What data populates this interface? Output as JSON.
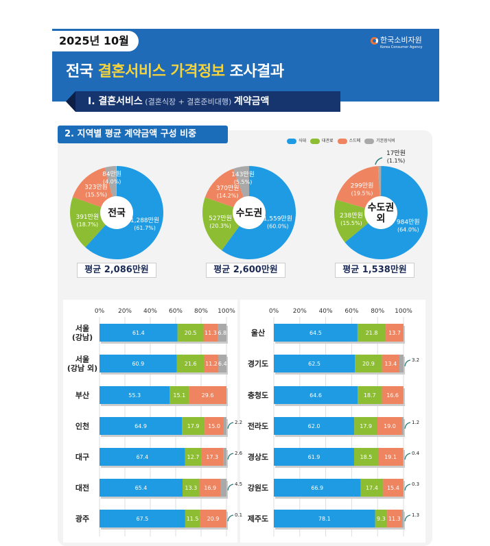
{
  "header": {
    "date": "2025년 10월",
    "logo_name": "한국소비자원",
    "logo_sub": "Korea Consumer Agency",
    "title_pre": "전국 ",
    "title_hl": "결혼서비스 가격정보",
    "title_post": " 조사결과"
  },
  "subtitle": {
    "bold1": "Ⅰ. 결혼서비스",
    "light": " (결혼식장 + 결혼준비대행) ",
    "bold2": "계약금액"
  },
  "section": {
    "title": "2. 지역별 평균 계약금액 구성 비중"
  },
  "legend": [
    {
      "label": "식대",
      "color": "#1e9be3"
    },
    {
      "label": "대관료",
      "color": "#8cbd32"
    },
    {
      "label": "스드메",
      "color": "#ee8460"
    },
    {
      "label": "기본장식비",
      "color": "#a9a9a9"
    }
  ],
  "chart_data": [
    {
      "type": "pie",
      "title": "전국",
      "average": "평균 2,086만원",
      "slices": [
        {
          "category": "식대",
          "amount": "1,288만원",
          "pct": 61.7
        },
        {
          "category": "대관료",
          "amount": "391만원",
          "pct": 18.7
        },
        {
          "category": "스드메",
          "amount": "323만원",
          "pct": 15.5
        },
        {
          "category": "기본장식비",
          "amount": "84만원",
          "pct": 4.0
        }
      ]
    },
    {
      "type": "pie",
      "title": "수도권",
      "average": "평균 2,600만원",
      "slices": [
        {
          "category": "식대",
          "amount": "1,559만원",
          "pct": 60.0
        },
        {
          "category": "대관료",
          "amount": "527만원",
          "pct": 20.3
        },
        {
          "category": "스드메",
          "amount": "370만원",
          "pct": 14.2
        },
        {
          "category": "기본장식비",
          "amount": "143만원",
          "pct": 5.5
        }
      ]
    },
    {
      "type": "pie",
      "title": "수도권 외",
      "average": "평균 1,538만원",
      "slices": [
        {
          "category": "식대",
          "amount": "984만원",
          "pct": 64.0
        },
        {
          "category": "대관료",
          "amount": "238만원",
          "pct": 15.5
        },
        {
          "category": "스드메",
          "amount": "299만원",
          "pct": 19.5
        },
        {
          "category": "기본장식비",
          "amount": "17만원",
          "pct": 1.1
        }
      ]
    },
    {
      "type": "bar",
      "stacked": true,
      "orientation": "horizontal",
      "xticks": [
        "0%",
        "20%",
        "40%",
        "60%",
        "80%",
        "100%"
      ],
      "xlim": [
        0,
        100
      ],
      "categories": [
        "서울\n(강남)",
        "서울\n(강남 외)",
        "부산",
        "인천",
        "대구",
        "대전",
        "광주"
      ],
      "series": [
        {
          "name": "식대",
          "values": [
            61.4,
            60.9,
            55.3,
            64.9,
            67.4,
            65.4,
            67.5
          ]
        },
        {
          "name": "대관료",
          "values": [
            20.5,
            21.6,
            15.1,
            17.9,
            12.7,
            13.3,
            11.5
          ]
        },
        {
          "name": "스드메",
          "values": [
            11.3,
            11.2,
            29.6,
            15.0,
            17.3,
            16.9,
            20.9
          ]
        },
        {
          "name": "기본장식비",
          "values": [
            6.8,
            6.4,
            0,
            2.2,
            2.6,
            4.5,
            0.1
          ]
        }
      ]
    },
    {
      "type": "bar",
      "stacked": true,
      "orientation": "horizontal",
      "xticks": [
        "0%",
        "20%",
        "40%",
        "60%",
        "80%",
        "100%"
      ],
      "xlim": [
        0,
        100
      ],
      "categories": [
        "울산",
        "경기도",
        "충청도",
        "전라도",
        "경상도",
        "강원도",
        "제주도"
      ],
      "series": [
        {
          "name": "식대",
          "values": [
            64.5,
            62.5,
            64.6,
            62.0,
            61.9,
            66.9,
            78.1
          ]
        },
        {
          "name": "대관료",
          "values": [
            21.8,
            20.9,
            18.7,
            17.9,
            18.5,
            17.4,
            9.3
          ]
        },
        {
          "name": "스드메",
          "values": [
            13.7,
            13.4,
            16.6,
            19.0,
            19.1,
            15.4,
            11.3
          ]
        },
        {
          "name": "기본장식비",
          "values": [
            0,
            3.2,
            0,
            1.2,
            0.4,
            0.3,
            1.3
          ]
        }
      ]
    }
  ]
}
